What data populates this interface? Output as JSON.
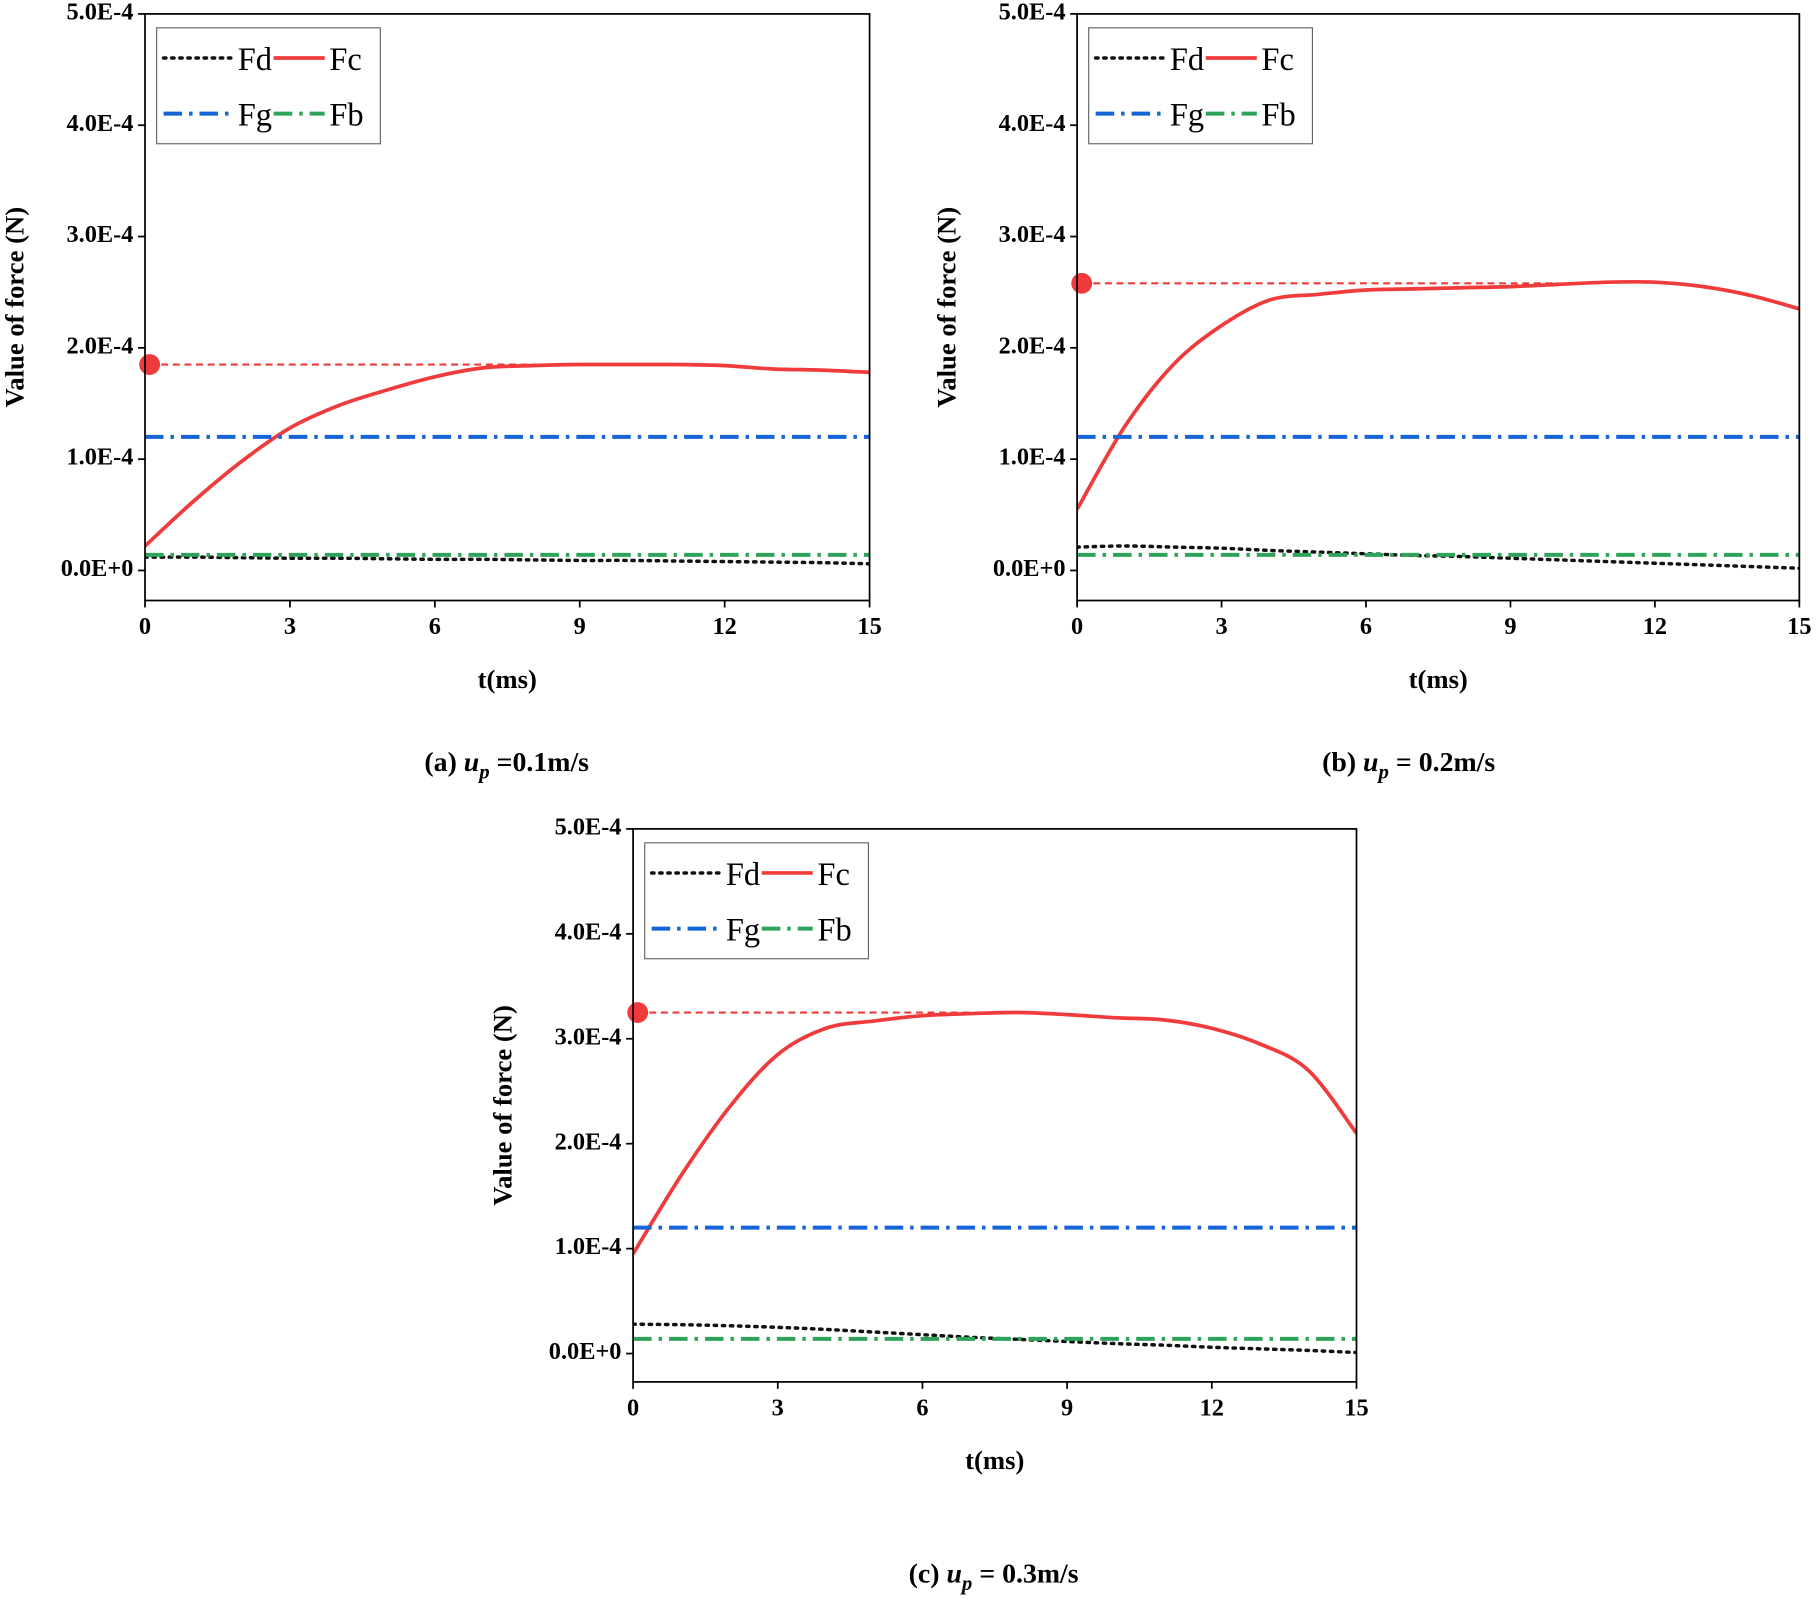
{
  "chart_data": [
    {
      "type": "line",
      "caption": {
        "prefix": "(a)",
        "symbol": "u",
        "sub": "p",
        "rest": "=0.1m/s"
      },
      "xlabel": "t(ms)",
      "ylabel": "Value of force (N)",
      "x": [
        0,
        1,
        2,
        3,
        4,
        5,
        6,
        7,
        8,
        9,
        10,
        11,
        12,
        13,
        14,
        15
      ],
      "xlim": [
        0,
        15
      ],
      "xticks": [
        0,
        3,
        6,
        9,
        12,
        15
      ],
      "ylim": [
        -2.7e-05,
        0.0005
      ],
      "yticks": [
        {
          "value": 0,
          "label": "0.0E+0"
        },
        {
          "value": 0.0001,
          "label": "1.0E-4"
        },
        {
          "value": 0.0002,
          "label": "2.0E-4"
        },
        {
          "value": 0.0003,
          "label": "3.0E-4"
        },
        {
          "value": 0.0004,
          "label": "4.0E-4"
        },
        {
          "value": 0.0005,
          "label": "5.0E-4"
        }
      ],
      "grid": false,
      "legend": "upper left",
      "peak": {
        "value": 0.000185,
        "color": "#ef3b3b"
      },
      "series": [
        {
          "name": "Fd",
          "color": "#111111",
          "style": "dotted",
          "values": [
            1.2e-05,
            1.2e-05,
            1.15e-05,
            1.1e-05,
            1.1e-05,
            1.05e-05,
            1e-05,
            1e-05,
            9.5e-06,
            9e-06,
            9e-06,
            8.5e-06,
            8e-06,
            7.5e-06,
            7e-06,
            6e-06
          ]
        },
        {
          "name": "Fc",
          "color": "#ef3b3b",
          "style": "solid",
          "values": [
            2.2e-05,
            6.2e-05,
            9.8e-05,
            0.000128,
            0.000148,
            0.000162,
            0.000174,
            0.000182,
            0.000184,
            0.000185,
            0.000185,
            0.000185,
            0.000184,
            0.000181,
            0.00018,
            0.000178
          ]
        },
        {
          "name": "Fg",
          "color": "#1565d8",
          "style": "dashdot",
          "values": [
            0.00012,
            0.00012,
            0.00012,
            0.00012,
            0.00012,
            0.00012,
            0.00012,
            0.00012,
            0.00012,
            0.00012,
            0.00012,
            0.00012,
            0.00012,
            0.00012,
            0.00012,
            0.00012
          ]
        },
        {
          "name": "Fb",
          "color": "#2ea35a",
          "style": "dashdot",
          "values": [
            1.4e-05,
            1.4e-05,
            1.4e-05,
            1.4e-05,
            1.4e-05,
            1.4e-05,
            1.4e-05,
            1.4e-05,
            1.4e-05,
            1.4e-05,
            1.4e-05,
            1.4e-05,
            1.4e-05,
            1.4e-05,
            1.4e-05,
            1.4e-05
          ]
        }
      ]
    },
    {
      "type": "line",
      "caption": {
        "prefix": "(b)",
        "symbol": "u",
        "sub": "p",
        "rest": "= 0.2m/s"
      },
      "xlabel": "t(ms)",
      "ylabel": "Value of force (N)",
      "x": [
        0,
        1,
        2,
        3,
        4,
        5,
        6,
        7,
        8,
        9,
        10,
        11,
        12,
        13,
        14,
        15
      ],
      "xlim": [
        0,
        15
      ],
      "xticks": [
        0,
        3,
        6,
        9,
        12,
        15
      ],
      "ylim": [
        -2.7e-05,
        0.0005
      ],
      "yticks": [
        {
          "value": 0,
          "label": "0.0E+0"
        },
        {
          "value": 0.0001,
          "label": "1.0E-4"
        },
        {
          "value": 0.0002,
          "label": "2.0E-4"
        },
        {
          "value": 0.0003,
          "label": "3.0E-4"
        },
        {
          "value": 0.0004,
          "label": "4.0E-4"
        },
        {
          "value": 0.0005,
          "label": "5.0E-4"
        }
      ],
      "grid": false,
      "legend": "upper left",
      "peak": {
        "value": 0.000258,
        "color": "#ef3b3b"
      },
      "series": [
        {
          "name": "Fd",
          "color": "#111111",
          "style": "dotted",
          "values": [
            2.1e-05,
            2.2e-05,
            2.1e-05,
            2e-05,
            1.8e-05,
            1.65e-05,
            1.5e-05,
            1.35e-05,
            1.25e-05,
            1.1e-05,
            9.5e-06,
            8e-06,
            6.5e-06,
            5e-06,
            3.5e-06,
            2e-06
          ]
        },
        {
          "name": "Fc",
          "color": "#ef3b3b",
          "style": "solid",
          "values": [
            5.5e-05,
            0.00013,
            0.000185,
            0.00022,
            0.000243,
            0.000248,
            0.000252,
            0.000253,
            0.000254,
            0.000255,
            0.000257,
            0.000259,
            0.000259,
            0.000255,
            0.000247,
            0.000235
          ]
        },
        {
          "name": "Fg",
          "color": "#1565d8",
          "style": "dashdot",
          "values": [
            0.00012,
            0.00012,
            0.00012,
            0.00012,
            0.00012,
            0.00012,
            0.00012,
            0.00012,
            0.00012,
            0.00012,
            0.00012,
            0.00012,
            0.00012,
            0.00012,
            0.00012,
            0.00012
          ]
        },
        {
          "name": "Fb",
          "color": "#2ea35a",
          "style": "dashdot",
          "values": [
            1.4e-05,
            1.4e-05,
            1.4e-05,
            1.4e-05,
            1.4e-05,
            1.4e-05,
            1.4e-05,
            1.4e-05,
            1.4e-05,
            1.4e-05,
            1.4e-05,
            1.4e-05,
            1.4e-05,
            1.4e-05,
            1.4e-05,
            1.4e-05
          ]
        }
      ]
    },
    {
      "type": "line",
      "caption": {
        "prefix": "(c)",
        "symbol": "u",
        "sub": "p",
        "rest": "= 0.3m/s"
      },
      "xlabel": "t(ms)",
      "ylabel": "Value of force (N)",
      "x": [
        0,
        1,
        2,
        3,
        4,
        5,
        6,
        7,
        8,
        9,
        10,
        11,
        12,
        13,
        14,
        15
      ],
      "xlim": [
        0,
        15
      ],
      "xticks": [
        0,
        3,
        6,
        9,
        12,
        15
      ],
      "ylim": [
        -2.7e-05,
        0.0005
      ],
      "yticks": [
        {
          "value": 0,
          "label": "0.0E+0"
        },
        {
          "value": 0.0001,
          "label": "1.0E-4"
        },
        {
          "value": 0.0002,
          "label": "2.0E-4"
        },
        {
          "value": 0.0003,
          "label": "3.0E-4"
        },
        {
          "value": 0.0004,
          "label": "4.0E-4"
        },
        {
          "value": 0.0005,
          "label": "5.0E-4"
        }
      ],
      "grid": false,
      "legend": "upper left",
      "peak": {
        "value": 0.000325,
        "color": "#ef3b3b"
      },
      "series": [
        {
          "name": "Fd",
          "color": "#111111",
          "style": "dotted",
          "values": [
            2.8e-05,
            2.75e-05,
            2.65e-05,
            2.5e-05,
            2.3e-05,
            2.05e-05,
            1.8e-05,
            1.55e-05,
            1.35e-05,
            1.15e-05,
            9.5e-06,
            8e-06,
            6e-06,
            4.5e-06,
            3e-06,
            1e-06
          ]
        },
        {
          "name": "Fc",
          "color": "#ef3b3b",
          "style": "solid",
          "values": [
            9.5e-05,
            0.00017,
            0.000235,
            0.000285,
            0.00031,
            0.000317,
            0.000322,
            0.000324,
            0.000325,
            0.000323,
            0.00032,
            0.000318,
            0.00031,
            0.000295,
            0.00027,
            0.00021
          ]
        },
        {
          "name": "Fg",
          "color": "#1565d8",
          "style": "dashdot",
          "values": [
            0.00012,
            0.00012,
            0.00012,
            0.00012,
            0.00012,
            0.00012,
            0.00012,
            0.00012,
            0.00012,
            0.00012,
            0.00012,
            0.00012,
            0.00012,
            0.00012,
            0.00012,
            0.00012
          ]
        },
        {
          "name": "Fb",
          "color": "#2ea35a",
          "style": "dashdot",
          "values": [
            1.4e-05,
            1.4e-05,
            1.4e-05,
            1.4e-05,
            1.4e-05,
            1.4e-05,
            1.4e-05,
            1.4e-05,
            1.4e-05,
            1.4e-05,
            1.4e-05,
            1.4e-05,
            1.4e-05,
            1.4e-05,
            1.4e-05,
            1.4e-05
          ]
        }
      ]
    }
  ]
}
